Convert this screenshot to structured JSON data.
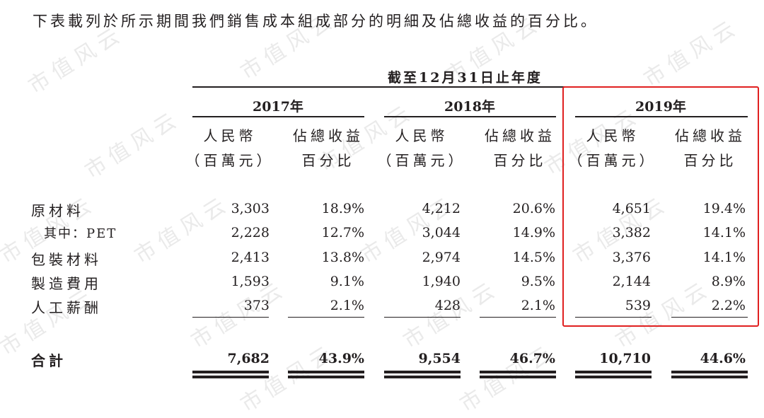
{
  "intro": "下表載列於所示期間我們銷售成本組成部分的明細及佔總收益的百分比。",
  "period_header": "截至12月31日止年度",
  "years": [
    "2017年",
    "2018年",
    "2019年"
  ],
  "col_headers": {
    "currency_line1": "人民幣",
    "currency_line2": "（百萬元）",
    "pct_line1": "佔總收益",
    "pct_line2": "百分比"
  },
  "rows": [
    {
      "label": "原材料",
      "values": [
        "3,303",
        "18.9%",
        "4,212",
        "20.6%",
        "4,651",
        "19.4%"
      ]
    },
    {
      "label": "其中：PET",
      "values": [
        "2,228",
        "12.7%",
        "3,044",
        "14.9%",
        "3,382",
        "14.1%"
      ]
    },
    {
      "label": "包裝材料",
      "values": [
        "2,413",
        "13.8%",
        "2,974",
        "14.5%",
        "3,376",
        "14.1%"
      ]
    },
    {
      "label": "製造費用",
      "values": [
        "1,593",
        "9.1%",
        "1,940",
        "9.5%",
        "2,144",
        "8.9%"
      ]
    },
    {
      "label": "人工薪酬",
      "values": [
        "373",
        "2.1%",
        "428",
        "2.1%",
        "539",
        "2.2%"
      ]
    }
  ],
  "total": {
    "label": "合計",
    "values": [
      "7,682",
      "43.9%",
      "9,554",
      "46.7%",
      "10,710",
      "44.6%"
    ]
  },
  "watermark": "市值风云",
  "highlight_color": "#e02020"
}
